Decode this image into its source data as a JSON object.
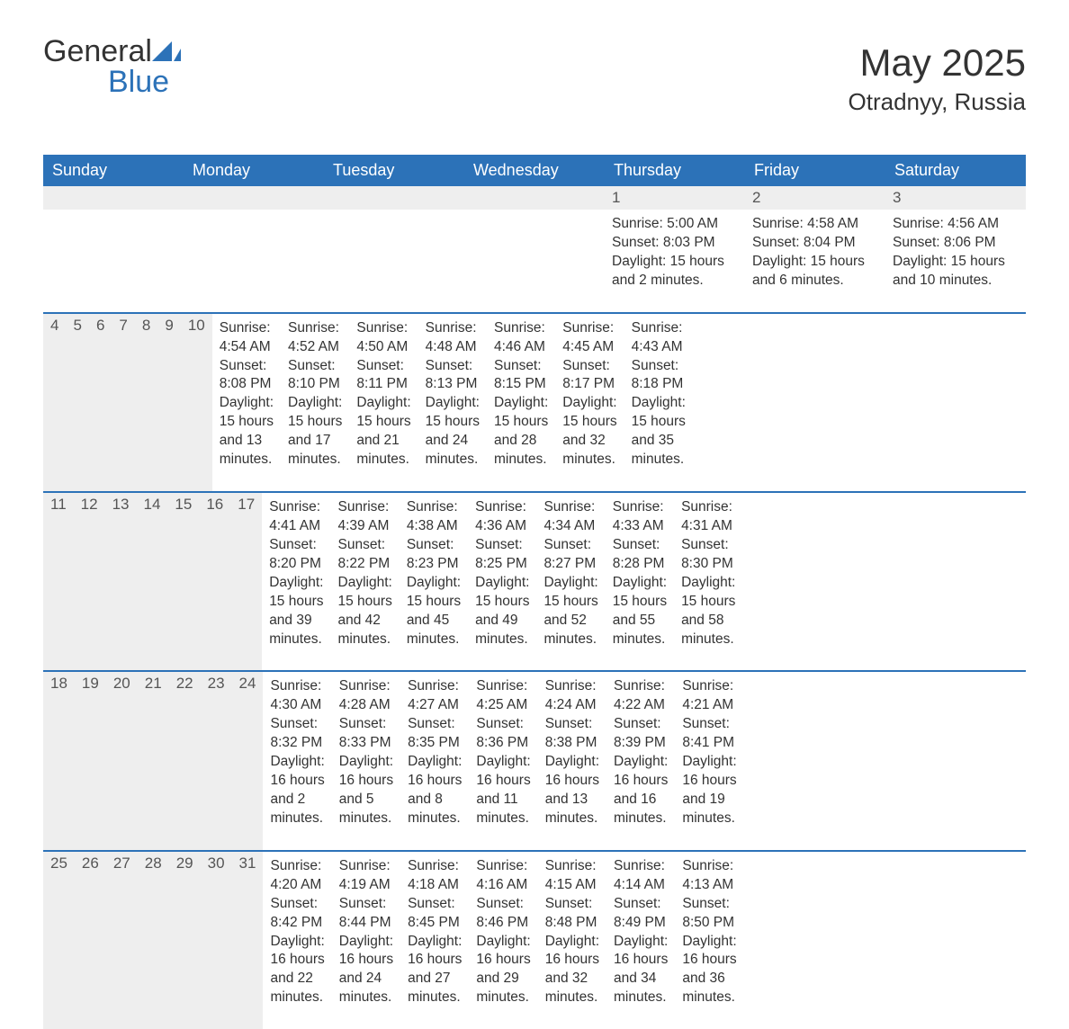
{
  "logo": {
    "text1": "General",
    "text2": "Blue",
    "icon_color": "#2c72b8"
  },
  "title": "May 2025",
  "subtitle": "Otradnyy, Russia",
  "colors": {
    "header_bg": "#2c72b8",
    "header_text": "#ffffff",
    "daynum_bg": "#eeeeee",
    "week_border": "#2c72b8",
    "body_text": "#333333"
  },
  "day_names": [
    "Sunday",
    "Monday",
    "Tuesday",
    "Wednesday",
    "Thursday",
    "Friday",
    "Saturday"
  ],
  "weeks": [
    {
      "nums": [
        "",
        "",
        "",
        "",
        "1",
        "2",
        "3"
      ],
      "cells": [
        null,
        null,
        null,
        null,
        {
          "sunrise": "Sunrise: 5:00 AM",
          "sunset": "Sunset: 8:03 PM",
          "day1": "Daylight: 15 hours",
          "day2": "and 2 minutes."
        },
        {
          "sunrise": "Sunrise: 4:58 AM",
          "sunset": "Sunset: 8:04 PM",
          "day1": "Daylight: 15 hours",
          "day2": "and 6 minutes."
        },
        {
          "sunrise": "Sunrise: 4:56 AM",
          "sunset": "Sunset: 8:06 PM",
          "day1": "Daylight: 15 hours",
          "day2": "and 10 minutes."
        }
      ]
    },
    {
      "nums": [
        "4",
        "5",
        "6",
        "7",
        "8",
        "9",
        "10"
      ],
      "cells": [
        {
          "sunrise": "Sunrise: 4:54 AM",
          "sunset": "Sunset: 8:08 PM",
          "day1": "Daylight: 15 hours",
          "day2": "and 13 minutes."
        },
        {
          "sunrise": "Sunrise: 4:52 AM",
          "sunset": "Sunset: 8:10 PM",
          "day1": "Daylight: 15 hours",
          "day2": "and 17 minutes."
        },
        {
          "sunrise": "Sunrise: 4:50 AM",
          "sunset": "Sunset: 8:11 PM",
          "day1": "Daylight: 15 hours",
          "day2": "and 21 minutes."
        },
        {
          "sunrise": "Sunrise: 4:48 AM",
          "sunset": "Sunset: 8:13 PM",
          "day1": "Daylight: 15 hours",
          "day2": "and 24 minutes."
        },
        {
          "sunrise": "Sunrise: 4:46 AM",
          "sunset": "Sunset: 8:15 PM",
          "day1": "Daylight: 15 hours",
          "day2": "and 28 minutes."
        },
        {
          "sunrise": "Sunrise: 4:45 AM",
          "sunset": "Sunset: 8:17 PM",
          "day1": "Daylight: 15 hours",
          "day2": "and 32 minutes."
        },
        {
          "sunrise": "Sunrise: 4:43 AM",
          "sunset": "Sunset: 8:18 PM",
          "day1": "Daylight: 15 hours",
          "day2": "and 35 minutes."
        }
      ]
    },
    {
      "nums": [
        "11",
        "12",
        "13",
        "14",
        "15",
        "16",
        "17"
      ],
      "cells": [
        {
          "sunrise": "Sunrise: 4:41 AM",
          "sunset": "Sunset: 8:20 PM",
          "day1": "Daylight: 15 hours",
          "day2": "and 39 minutes."
        },
        {
          "sunrise": "Sunrise: 4:39 AM",
          "sunset": "Sunset: 8:22 PM",
          "day1": "Daylight: 15 hours",
          "day2": "and 42 minutes."
        },
        {
          "sunrise": "Sunrise: 4:38 AM",
          "sunset": "Sunset: 8:23 PM",
          "day1": "Daylight: 15 hours",
          "day2": "and 45 minutes."
        },
        {
          "sunrise": "Sunrise: 4:36 AM",
          "sunset": "Sunset: 8:25 PM",
          "day1": "Daylight: 15 hours",
          "day2": "and 49 minutes."
        },
        {
          "sunrise": "Sunrise: 4:34 AM",
          "sunset": "Sunset: 8:27 PM",
          "day1": "Daylight: 15 hours",
          "day2": "and 52 minutes."
        },
        {
          "sunrise": "Sunrise: 4:33 AM",
          "sunset": "Sunset: 8:28 PM",
          "day1": "Daylight: 15 hours",
          "day2": "and 55 minutes."
        },
        {
          "sunrise": "Sunrise: 4:31 AM",
          "sunset": "Sunset: 8:30 PM",
          "day1": "Daylight: 15 hours",
          "day2": "and 58 minutes."
        }
      ]
    },
    {
      "nums": [
        "18",
        "19",
        "20",
        "21",
        "22",
        "23",
        "24"
      ],
      "cells": [
        {
          "sunrise": "Sunrise: 4:30 AM",
          "sunset": "Sunset: 8:32 PM",
          "day1": "Daylight: 16 hours",
          "day2": "and 2 minutes."
        },
        {
          "sunrise": "Sunrise: 4:28 AM",
          "sunset": "Sunset: 8:33 PM",
          "day1": "Daylight: 16 hours",
          "day2": "and 5 minutes."
        },
        {
          "sunrise": "Sunrise: 4:27 AM",
          "sunset": "Sunset: 8:35 PM",
          "day1": "Daylight: 16 hours",
          "day2": "and 8 minutes."
        },
        {
          "sunrise": "Sunrise: 4:25 AM",
          "sunset": "Sunset: 8:36 PM",
          "day1": "Daylight: 16 hours",
          "day2": "and 11 minutes."
        },
        {
          "sunrise": "Sunrise: 4:24 AM",
          "sunset": "Sunset: 8:38 PM",
          "day1": "Daylight: 16 hours",
          "day2": "and 13 minutes."
        },
        {
          "sunrise": "Sunrise: 4:22 AM",
          "sunset": "Sunset: 8:39 PM",
          "day1": "Daylight: 16 hours",
          "day2": "and 16 minutes."
        },
        {
          "sunrise": "Sunrise: 4:21 AM",
          "sunset": "Sunset: 8:41 PM",
          "day1": "Daylight: 16 hours",
          "day2": "and 19 minutes."
        }
      ]
    },
    {
      "nums": [
        "25",
        "26",
        "27",
        "28",
        "29",
        "30",
        "31"
      ],
      "cells": [
        {
          "sunrise": "Sunrise: 4:20 AM",
          "sunset": "Sunset: 8:42 PM",
          "day1": "Daylight: 16 hours",
          "day2": "and 22 minutes."
        },
        {
          "sunrise": "Sunrise: 4:19 AM",
          "sunset": "Sunset: 8:44 PM",
          "day1": "Daylight: 16 hours",
          "day2": "and 24 minutes."
        },
        {
          "sunrise": "Sunrise: 4:18 AM",
          "sunset": "Sunset: 8:45 PM",
          "day1": "Daylight: 16 hours",
          "day2": "and 27 minutes."
        },
        {
          "sunrise": "Sunrise: 4:16 AM",
          "sunset": "Sunset: 8:46 PM",
          "day1": "Daylight: 16 hours",
          "day2": "and 29 minutes."
        },
        {
          "sunrise": "Sunrise: 4:15 AM",
          "sunset": "Sunset: 8:48 PM",
          "day1": "Daylight: 16 hours",
          "day2": "and 32 minutes."
        },
        {
          "sunrise": "Sunrise: 4:14 AM",
          "sunset": "Sunset: 8:49 PM",
          "day1": "Daylight: 16 hours",
          "day2": "and 34 minutes."
        },
        {
          "sunrise": "Sunrise: 4:13 AM",
          "sunset": "Sunset: 8:50 PM",
          "day1": "Daylight: 16 hours",
          "day2": "and 36 minutes."
        }
      ]
    }
  ]
}
